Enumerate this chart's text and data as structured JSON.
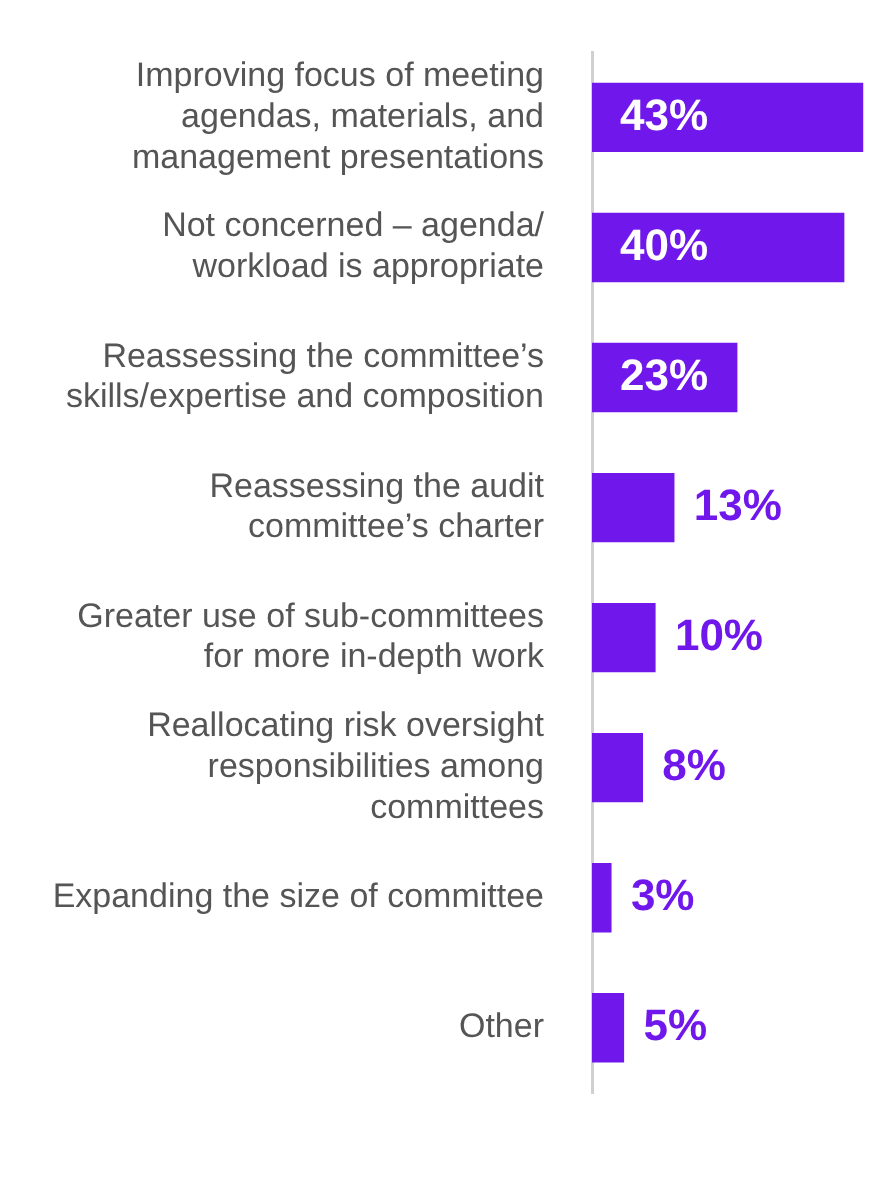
{
  "chart_data": {
    "type": "bar",
    "orientation": "horizontal",
    "categories": [
      "Improving focus of meeting agendas, materials, and management presentations",
      "Not concerned – agenda/ workload is appropriate",
      "Reassessing the committee’s skills/expertise and composition",
      "Reassessing the audit committee’s charter",
      "Greater use of sub-committees for more in-depth work",
      "Reallocating risk oversight responsibilities among committees",
      "Expanding the size of committee",
      "Other"
    ],
    "values": [
      43,
      40,
      23,
      13,
      10,
      8,
      3,
      5
    ],
    "value_labels": [
      "43%",
      "40%",
      "23%",
      "13%",
      "10%",
      "8%",
      "3%",
      "5%"
    ],
    "color": "#7018ec",
    "legend": false
  }
}
